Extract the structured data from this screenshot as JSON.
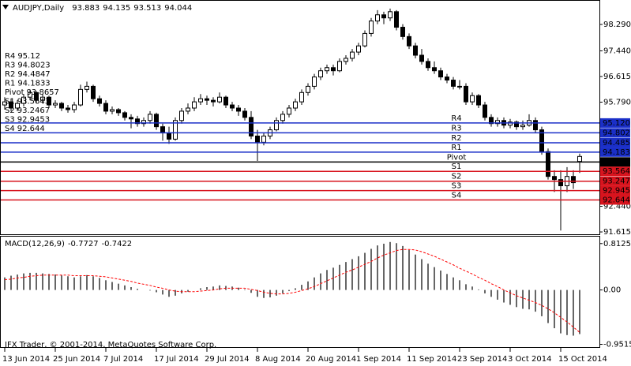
{
  "chart_data": [
    {
      "type": "candlestick",
      "title": "AUDJPY,Daily",
      "up_color": "#ffffff",
      "down_color": "#000000",
      "ohlc": [
        [
          95.7,
          95.95,
          95.55,
          95.8
        ],
        [
          95.8,
          95.9,
          95.5,
          95.6
        ],
        [
          95.6,
          95.85,
          95.5,
          95.75
        ],
        [
          95.75,
          96.05,
          95.65,
          95.95
        ],
        [
          95.95,
          96.2,
          95.85,
          96.1
        ],
        [
          96.1,
          96.15,
          95.75,
          95.85
        ],
        [
          95.85,
          96.05,
          95.75,
          95.95
        ],
        [
          95.95,
          96.0,
          95.6,
          95.7
        ],
        [
          95.7,
          95.85,
          95.6,
          95.75
        ],
        [
          95.75,
          95.8,
          95.5,
          95.6
        ],
        [
          95.6,
          95.7,
          95.45,
          95.55
        ],
        [
          95.55,
          95.8,
          95.45,
          95.7
        ],
        [
          95.7,
          96.35,
          95.65,
          96.2
        ],
        [
          96.2,
          96.45,
          96.1,
          96.3
        ],
        [
          96.3,
          96.35,
          95.8,
          95.9
        ],
        [
          95.9,
          96.0,
          95.65,
          95.75
        ],
        [
          95.75,
          95.85,
          95.4,
          95.5
        ],
        [
          95.5,
          95.65,
          95.4,
          95.55
        ],
        [
          95.55,
          95.6,
          95.35,
          95.45
        ],
        [
          95.45,
          95.5,
          95.2,
          95.3
        ],
        [
          95.3,
          95.4,
          94.95,
          95.25
        ],
        [
          95.25,
          95.35,
          95.0,
          95.1
        ],
        [
          95.1,
          95.3,
          95.0,
          95.2
        ],
        [
          95.2,
          95.5,
          95.1,
          95.4
        ],
        [
          95.4,
          95.45,
          94.9,
          95.0
        ],
        [
          95.0,
          95.1,
          94.55,
          94.8
        ],
        [
          94.8,
          95.0,
          94.45,
          94.6
        ],
        [
          94.6,
          95.3,
          94.55,
          95.2
        ],
        [
          95.2,
          95.6,
          95.1,
          95.5
        ],
        [
          95.5,
          95.75,
          95.4,
          95.6
        ],
        [
          95.6,
          95.95,
          95.5,
          95.8
        ],
        [
          95.8,
          96.05,
          95.7,
          95.9
        ],
        [
          95.9,
          96.0,
          95.7,
          95.85
        ],
        [
          95.85,
          95.95,
          95.65,
          95.8
        ],
        [
          95.8,
          96.1,
          95.75,
          95.95
        ],
        [
          95.95,
          96.0,
          95.6,
          95.7
        ],
        [
          95.7,
          95.8,
          95.5,
          95.6
        ],
        [
          95.6,
          95.7,
          95.35,
          95.5
        ],
        [
          95.5,
          95.6,
          95.2,
          95.3
        ],
        [
          95.3,
          95.5,
          94.6,
          94.7
        ],
        [
          94.7,
          94.9,
          93.9,
          94.5
        ],
        [
          94.5,
          94.8,
          94.4,
          94.7
        ],
        [
          94.7,
          95.0,
          94.6,
          94.9
        ],
        [
          94.9,
          95.3,
          94.85,
          95.2
        ],
        [
          95.2,
          95.5,
          95.1,
          95.4
        ],
        [
          95.4,
          95.7,
          95.3,
          95.6
        ],
        [
          95.6,
          95.9,
          95.5,
          95.8
        ],
        [
          95.8,
          96.2,
          95.7,
          96.1
        ],
        [
          96.1,
          96.4,
          96.0,
          96.3
        ],
        [
          96.3,
          96.7,
          96.2,
          96.6
        ],
        [
          96.6,
          96.9,
          96.5,
          96.8
        ],
        [
          96.8,
          97.0,
          96.7,
          96.9
        ],
        [
          96.9,
          97.0,
          96.65,
          96.8
        ],
        [
          96.8,
          97.2,
          96.75,
          97.1
        ],
        [
          97.1,
          97.3,
          97.0,
          97.2
        ],
        [
          97.2,
          97.5,
          97.1,
          97.4
        ],
        [
          97.4,
          97.7,
          97.3,
          97.6
        ],
        [
          97.6,
          98.1,
          97.55,
          98.0
        ],
        [
          98.0,
          98.5,
          97.9,
          98.4
        ],
        [
          98.4,
          98.75,
          98.3,
          98.6
        ],
        [
          98.6,
          98.7,
          98.3,
          98.5
        ],
        [
          98.5,
          98.8,
          98.4,
          98.7
        ],
        [
          98.7,
          98.75,
          98.1,
          98.2
        ],
        [
          98.2,
          98.3,
          97.8,
          97.9
        ],
        [
          97.9,
          98.0,
          97.5,
          97.6
        ],
        [
          97.6,
          97.7,
          97.2,
          97.3
        ],
        [
          97.3,
          97.5,
          97.0,
          97.1
        ],
        [
          97.1,
          97.2,
          96.8,
          96.9
        ],
        [
          96.9,
          97.1,
          96.7,
          96.8
        ],
        [
          96.8,
          96.9,
          96.5,
          96.6
        ],
        [
          96.6,
          96.7,
          96.4,
          96.5
        ],
        [
          96.5,
          96.6,
          96.2,
          96.3
        ],
        [
          96.3,
          96.5,
          96.2,
          96.3
        ],
        [
          96.3,
          96.4,
          95.7,
          95.8
        ],
        [
          95.8,
          96.1,
          95.7,
          96.0
        ],
        [
          96.0,
          96.05,
          95.6,
          95.7
        ],
        [
          95.7,
          95.8,
          95.2,
          95.3
        ],
        [
          95.3,
          95.4,
          95.0,
          95.1
        ],
        [
          95.1,
          95.3,
          95.0,
          95.2
        ],
        [
          95.2,
          95.3,
          94.95,
          95.05
        ],
        [
          95.05,
          95.25,
          94.95,
          95.15
        ],
        [
          95.15,
          95.2,
          94.9,
          95.0
        ],
        [
          95.0,
          95.2,
          94.9,
          95.05
        ],
        [
          95.05,
          95.4,
          95.0,
          95.2
        ],
        [
          95.2,
          95.3,
          94.8,
          94.9
        ],
        [
          94.9,
          95.0,
          94.1,
          94.2
        ],
        [
          94.2,
          94.3,
          93.3,
          93.4
        ],
        [
          93.4,
          93.6,
          92.9,
          93.3
        ],
        [
          93.3,
          93.6,
          91.66,
          93.1
        ],
        [
          93.1,
          93.7,
          92.9,
          93.4
        ],
        [
          93.4,
          93.6,
          93.0,
          93.2
        ],
        [
          93.883,
          94.135,
          93.513,
          94.044
        ]
      ],
      "ylim": [
        91.54,
        99.0
      ],
      "yticks": [
        {
          "value": 98.29,
          "label": "98.290"
        },
        {
          "value": 97.44,
          "label": "97.440"
        },
        {
          "value": 96.615,
          "label": "96.615"
        },
        {
          "value": 95.79,
          "label": "95.790"
        },
        {
          "value": 92.44,
          "label": "92.440"
        },
        {
          "value": 91.615,
          "label": "91.615"
        }
      ],
      "xticks": [
        {
          "value": 0,
          "label": "13 Jun 2014"
        },
        {
          "value": 8,
          "label": "25 Jun 2014"
        },
        {
          "value": 16,
          "label": "7 Jul 2014"
        },
        {
          "value": 24,
          "label": "17 Jul 2014"
        },
        {
          "value": 32,
          "label": "29 Jul 2014"
        },
        {
          "value": 40,
          "label": "8 Aug 2014"
        },
        {
          "value": 48,
          "label": "20 Aug 2014"
        },
        {
          "value": 56,
          "label": "1 Sep 2014"
        },
        {
          "value": 64,
          "label": "11 Sep 2014"
        },
        {
          "value": 72,
          "label": "23 Sep 2014"
        },
        {
          "value": 80,
          "label": "3 Oct 2014"
        },
        {
          "value": 88,
          "label": "15 Oct 2014"
        }
      ],
      "level_name_color": "#e0141e",
      "pivots": [
        {
          "name": "R4",
          "value": 95.12,
          "label": "95.120",
          "color": "#1a2fc8"
        },
        {
          "name": "R3",
          "value": 94.8023,
          "label": "94.802",
          "color": "#1a2fc8"
        },
        {
          "name": "R2",
          "value": 94.4847,
          "label": "94.485",
          "color": "#1a2fc8"
        },
        {
          "name": "R1",
          "value": 94.1833,
          "label": "94.183",
          "color": "#1a2fc8"
        },
        {
          "name": "Pivot",
          "value": 93.8657,
          "label": "93.866",
          "color": "#000000"
        },
        {
          "name": "S1",
          "value": 93.5643,
          "label": "93.564",
          "color": "#d8141e"
        },
        {
          "name": "S2",
          "value": 93.2467,
          "label": "93.247",
          "color": "#d8141e"
        },
        {
          "name": "S3",
          "value": 92.9453,
          "label": "92.945",
          "color": "#d8141e"
        },
        {
          "name": "S4",
          "value": 92.644,
          "label": "92.644",
          "color": "#d8141e"
        }
      ]
    },
    {
      "type": "macd",
      "title": "MACD(12,26,9)",
      "histogram_color": "#000000",
      "signal_color": "#ff0000",
      "histogram": [
        0.22,
        0.25,
        0.27,
        0.29,
        0.3,
        0.3,
        0.29,
        0.28,
        0.27,
        0.26,
        0.24,
        0.22,
        0.24,
        0.26,
        0.24,
        0.21,
        0.17,
        0.14,
        0.11,
        0.08,
        0.05,
        0.02,
        0.0,
        -0.01,
        -0.04,
        -0.08,
        -0.12,
        -0.1,
        -0.06,
        -0.03,
        0.0,
        0.03,
        0.05,
        0.06,
        0.08,
        0.07,
        0.06,
        0.04,
        0.01,
        -0.05,
        -0.12,
        -0.14,
        -0.13,
        -0.1,
        -0.06,
        -0.02,
        0.03,
        0.09,
        0.15,
        0.22,
        0.29,
        0.35,
        0.39,
        0.44,
        0.49,
        0.54,
        0.59,
        0.65,
        0.72,
        0.78,
        0.81,
        0.84,
        0.82,
        0.77,
        0.7,
        0.62,
        0.54,
        0.46,
        0.4,
        0.34,
        0.28,
        0.22,
        0.17,
        0.1,
        0.06,
        0.01,
        -0.06,
        -0.12,
        -0.17,
        -0.22,
        -0.26,
        -0.3,
        -0.33,
        -0.34,
        -0.38,
        -0.46,
        -0.58,
        -0.67,
        -0.76,
        -0.79,
        -0.8,
        -0.7727
      ],
      "signal": [
        0.18,
        0.19,
        0.21,
        0.22,
        0.24,
        0.25,
        0.26,
        0.26,
        0.26,
        0.26,
        0.26,
        0.25,
        0.25,
        0.25,
        0.25,
        0.24,
        0.23,
        0.21,
        0.19,
        0.17,
        0.15,
        0.12,
        0.1,
        0.08,
        0.05,
        0.03,
        0.0,
        -0.02,
        -0.03,
        -0.03,
        -0.03,
        -0.02,
        -0.01,
        0.0,
        0.02,
        0.03,
        0.03,
        0.03,
        0.03,
        0.01,
        -0.01,
        -0.04,
        -0.06,
        -0.07,
        -0.07,
        -0.06,
        -0.04,
        -0.01,
        0.02,
        0.06,
        0.11,
        0.16,
        0.21,
        0.26,
        0.31,
        0.35,
        0.4,
        0.45,
        0.5,
        0.56,
        0.61,
        0.65,
        0.69,
        0.71,
        0.71,
        0.7,
        0.67,
        0.63,
        0.59,
        0.54,
        0.49,
        0.44,
        0.38,
        0.33,
        0.28,
        0.22,
        0.17,
        0.11,
        0.06,
        0.0,
        -0.05,
        -0.1,
        -0.14,
        -0.18,
        -0.22,
        -0.27,
        -0.33,
        -0.4,
        -0.48,
        -0.56,
        -0.65,
        -0.7422
      ],
      "ylim": [
        -1.0,
        0.92
      ],
      "yticks": [
        0.8125,
        {
          "value": 0,
          "label": "0.00"
        },
        -0.9515
      ]
    }
  ],
  "footer": "IFX Trader, © 2001-2014, MetaQuotes Software Corp."
}
